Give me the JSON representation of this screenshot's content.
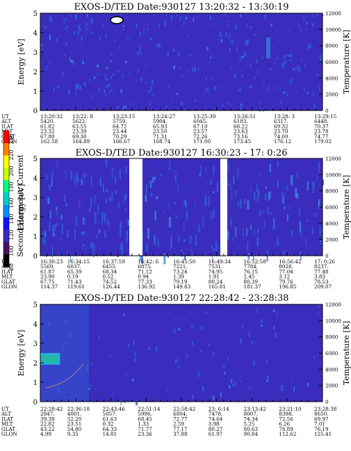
{
  "colors": {
    "background_field": "#3a2dbd",
    "speckle": "#2f5fd8",
    "speckle_light": "#3f86e6",
    "hot_cyan": "#23d4c8",
    "hot_green": "#21e07a",
    "gap": "#ffffff"
  },
  "colorbar": {
    "label": "Second Harmonic Current",
    "ticks": [
      "240",
      "220",
      "200",
      "180",
      "160",
      "140",
      "120",
      "100",
      "80"
    ],
    "colors": [
      "#ff0000",
      "#ff8000",
      "#ffff00",
      "#c8ff00",
      "#00ff80",
      "#00d0d0",
      "#0090ff",
      "#1010ff",
      "#3a2dbd",
      "#4a1060",
      "#000000"
    ]
  },
  "row_labels": [
    "UT",
    "ALT",
    "ILAT",
    "MLT",
    "GLAT",
    "GLON"
  ],
  "chart_data": [
    {
      "type": "heatmap",
      "title": "EXOS-D/TED  Date:930127  13:20:32 - 13:30:19",
      "ylabel": "Energy [eV]",
      "ylabel_right": "Temperature [K]",
      "yticks": [
        "0",
        "1",
        "2",
        "3",
        "4",
        "5"
      ],
      "yticks_right": [
        "0",
        "2000",
        "4000",
        "6000",
        "8000",
        "10000",
        "12000"
      ],
      "ylim": [
        0,
        5
      ],
      "ylim_right": [
        0,
        12000
      ],
      "gaps": [],
      "hot_spot": null,
      "table": {
        "UT": [
          "13:20:32",
          "13:22: 8",
          "13:23:15",
          "13:24:27",
          "13:25:39",
          "13:26:51",
          "13:28: 3",
          "13:29:15"
        ],
        "ALT": [
          "5420.",
          "5622.",
          "5759.",
          "5904.",
          "6045.",
          "6183.",
          "6317.",
          "6448."
        ],
        "ILAT": [
          "61.82",
          "63.55",
          "64.72",
          "65.93",
          "67.10",
          "68.22",
          "69.32",
          "70.37"
        ],
        "MLT": [
          "23.32",
          "23.39",
          "23.44",
          "23.50",
          "23.57",
          "23.63",
          "23.70",
          "23.78"
        ],
        "GLAT": [
          "67.80",
          "69.30",
          "70.29",
          "71.31",
          "72.26",
          "73.16",
          "74.00",
          "74.77"
        ],
        "GLON": [
          "162.58",
          "164.89",
          "166.67",
          "168.74",
          "171.00",
          "173.45",
          "176.12",
          "179.02"
        ]
      }
    },
    {
      "type": "heatmap",
      "title": "EXOS-D/TED   Date:930127  16:30:23 - 17: 0:26",
      "ylabel": "Energy [eV]",
      "ylabel_right": "Temperature [K]",
      "yticks": [
        "0",
        "1",
        "2",
        "3",
        "4",
        "5"
      ],
      "yticks_right": [
        "0",
        "2000",
        "4000",
        "6000",
        "8000",
        "10000",
        "12000"
      ],
      "ylim": [
        0,
        5
      ],
      "ylim_right": [
        0,
        12000
      ],
      "gaps": [],
      "hot_spot": null,
      "table": {
        "UT": [
          "16:30:23",
          "16:34:15",
          "16:37:59",
          "16:42: 6",
          "16:45:50",
          "16:49:34",
          "16:52:58",
          "16:56:42",
          "17: 0:26"
        ],
        "ALT": [
          "5569.",
          "6037.",
          "6455.",
          "6875.",
          "7221.",
          "7531.",
          "7784.",
          "8028.",
          "8237."
        ],
        "ILAT": [
          "61.87",
          "65.39",
          "68.34",
          "71.12",
          "73.24",
          "74.95",
          "76.15",
          "77.04",
          "77.48"
        ],
        "MLT": [
          "23.90",
          "0.19",
          "0.52",
          "0.94",
          "1.39",
          "1.91",
          "2.45",
          "3.12",
          "3.83"
        ],
        "GLAT": [
          "67.75",
          "71.43",
          "74.52",
          "77.33",
          "79.19",
          "80.24",
          "80.39",
          "79.76",
          "78.53"
        ],
        "GLON": [
          "114.37",
          "119.61",
          "126.44",
          "136.92",
          "149.83",
          "165.81",
          "181.37",
          "196.85",
          "209.07"
        ]
      }
    },
    {
      "type": "heatmap",
      "title": "EXOS-D/TED  Date:930127  22:28:42 - 23:28:38",
      "ylabel": "Energy [eV]",
      "ylabel_right": "Temperature [K]",
      "yticks": [
        "0",
        "1",
        "2",
        "3",
        "4",
        "5"
      ],
      "yticks_right": [
        "0",
        "2000",
        "4000",
        "6000",
        "8000",
        "10000",
        "12000"
      ],
      "ylim": [
        0,
        5
      ],
      "ylim_right": [
        0,
        12000
      ],
      "gaps": [],
      "hot_spot": {
        "x_frac": [
          0.0,
          0.07
        ],
        "energy": [
          1.9,
          2.5
        ]
      },
      "table": {
        "UT": [
          "22:28:42",
          "22:36:18",
          "22:43:46",
          "22:51:14",
          "22:58:42",
          "23: 6:14",
          "23:13:42",
          "23:21:10",
          "23:28:38"
        ],
        "ALT": [
          "2847.",
          "4001.",
          "5057.",
          "5996.",
          "6804.",
          "7478.",
          "8007.",
          "8398.",
          "8650."
        ],
        "ILAT": [
          "39.38",
          "52.20",
          "61.63",
          "68.45",
          "72.77",
          "74.64",
          "74.34",
          "72.56",
          "69.97"
        ],
        "MLT": [
          "22.82",
          "23.51",
          "0.32",
          "1.33",
          "2.59",
          "3.98",
          "5.25",
          "6.26",
          "7.01"
        ],
        "GLAT": [
          "43.22",
          "54.80",
          "64.33",
          "71.77",
          "77.17",
          "80.27",
          "80.63",
          "78.89",
          "76.19"
        ],
        "GLON": [
          "4.99",
          "9.35",
          "14.81",
          "23.36",
          "37.88",
          "61.97",
          "90.84",
          "112.62",
          "125.41"
        ]
      }
    }
  ]
}
